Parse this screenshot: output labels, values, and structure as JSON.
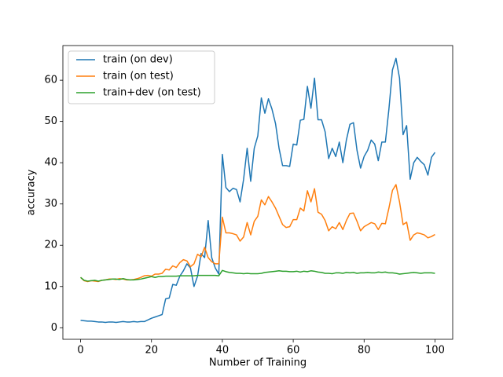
{
  "chart_data": {
    "type": "line",
    "xlabel": "Number of Training",
    "ylabel": "accuracy",
    "x": [
      0,
      1,
      2,
      3,
      4,
      5,
      6,
      7,
      8,
      9,
      10,
      11,
      12,
      13,
      14,
      15,
      16,
      17,
      18,
      19,
      20,
      21,
      22,
      23,
      24,
      25,
      26,
      27,
      28,
      29,
      30,
      31,
      32,
      33,
      34,
      35,
      36,
      37,
      38,
      39,
      40,
      41,
      42,
      43,
      44,
      45,
      46,
      47,
      48,
      49,
      50,
      51,
      52,
      53,
      54,
      55,
      56,
      57,
      58,
      59,
      60,
      61,
      62,
      63,
      64,
      65,
      66,
      67,
      68,
      69,
      70,
      71,
      72,
      73,
      74,
      75,
      76,
      77,
      78,
      79,
      80,
      81,
      82,
      83,
      84,
      85,
      86,
      87,
      88,
      89,
      90,
      91,
      92,
      93,
      94,
      95,
      96,
      97,
      98,
      99,
      100
    ],
    "series": [
      {
        "name": "train (on dev)",
        "color": "#1f77b4",
        "values": [
          1.8,
          1.7,
          1.6,
          1.6,
          1.5,
          1.4,
          1.4,
          1.3,
          1.4,
          1.4,
          1.3,
          1.4,
          1.5,
          1.4,
          1.4,
          1.5,
          1.4,
          1.5,
          1.5,
          1.9,
          2.3,
          2.6,
          2.9,
          3.2,
          7.0,
          7.2,
          10.5,
          10.3,
          12.5,
          13.8,
          15.5,
          14.5,
          10.0,
          12.5,
          18.0,
          17.0,
          26.0,
          17.0,
          14.5,
          13.0,
          42.0,
          34.0,
          33.0,
          33.8,
          33.5,
          30.5,
          36.0,
          43.5,
          35.5,
          43.5,
          46.5,
          55.7,
          52.0,
          55.5,
          53.0,
          49.5,
          43.5,
          39.3,
          39.3,
          39.1,
          44.5,
          44.3,
          50.3,
          50.5,
          58.5,
          53.2,
          60.5,
          50.4,
          50.4,
          47.5,
          41.0,
          43.5,
          41.5,
          45.0,
          40.0,
          45.5,
          49.3,
          49.7,
          43.0,
          38.7,
          41.5,
          43.0,
          45.5,
          44.5,
          40.5,
          45.0,
          45.0,
          53.0,
          62.5,
          65.3,
          60.5,
          46.8,
          49.0,
          36.0,
          40.0,
          41.3,
          40.3,
          39.5,
          37.0,
          41.3,
          42.5
        ]
      },
      {
        "name": "train (on test)",
        "color": "#ff7f0e",
        "values": [
          12.2,
          11.4,
          11.2,
          11.4,
          11.3,
          11.2,
          11.5,
          11.6,
          11.8,
          11.8,
          11.7,
          11.9,
          11.8,
          11.6,
          11.6,
          11.7,
          11.9,
          12.2,
          12.6,
          12.7,
          12.5,
          13.0,
          13.0,
          13.2,
          14.2,
          14.0,
          15.0,
          14.6,
          15.8,
          16.5,
          16.2,
          14.8,
          15.5,
          17.8,
          17.2,
          19.5,
          17.0,
          16.0,
          15.5,
          15.5,
          26.8,
          23.0,
          23.0,
          22.8,
          22.5,
          21.0,
          22.0,
          25.5,
          22.5,
          25.8,
          27.0,
          31.0,
          29.8,
          31.8,
          30.5,
          29.0,
          27.0,
          25.0,
          24.3,
          24.5,
          26.2,
          26.2,
          29.0,
          28.3,
          33.2,
          30.5,
          33.7,
          28.0,
          27.5,
          26.0,
          23.5,
          24.5,
          24.0,
          25.5,
          23.8,
          26.0,
          27.7,
          27.8,
          25.8,
          23.5,
          24.5,
          25.0,
          25.5,
          25.2,
          23.8,
          25.3,
          25.2,
          29.0,
          33.3,
          34.7,
          30.5,
          25.0,
          25.6,
          21.2,
          22.5,
          23.0,
          22.8,
          22.5,
          21.8,
          22.1,
          22.6
        ]
      },
      {
        "name": "train+dev (on test)",
        "color": "#2ca02c",
        "values": [
          12.2,
          11.5,
          11.3,
          11.4,
          11.5,
          11.3,
          11.5,
          11.6,
          11.7,
          11.8,
          11.8,
          11.7,
          11.9,
          11.7,
          11.6,
          11.6,
          11.7,
          11.8,
          12.0,
          12.2,
          12.4,
          12.2,
          12.4,
          12.4,
          12.5,
          12.5,
          12.5,
          12.5,
          12.6,
          12.6,
          12.6,
          12.6,
          12.6,
          12.7,
          12.7,
          12.7,
          12.7,
          12.7,
          12.7,
          12.6,
          13.9,
          13.6,
          13.4,
          13.3,
          13.2,
          13.2,
          13.1,
          13.2,
          13.1,
          13.1,
          13.1,
          13.2,
          13.4,
          13.5,
          13.6,
          13.7,
          13.8,
          13.7,
          13.7,
          13.6,
          13.6,
          13.7,
          13.5,
          13.7,
          13.6,
          13.8,
          13.7,
          13.5,
          13.4,
          13.2,
          13.2,
          13.1,
          13.3,
          13.3,
          13.2,
          13.4,
          13.3,
          13.4,
          13.2,
          13.3,
          13.3,
          13.4,
          13.3,
          13.3,
          13.5,
          13.4,
          13.5,
          13.3,
          13.3,
          13.2,
          13.0,
          13.1,
          13.2,
          13.3,
          13.4,
          13.3,
          13.2,
          13.3,
          13.3,
          13.3,
          13.2
        ]
      }
    ],
    "xlim": [
      -5,
      105
    ],
    "ylim": [
      -2.8,
      68.4
    ],
    "xticks": [
      0,
      20,
      40,
      60,
      80,
      100
    ],
    "yticks": [
      0,
      10,
      20,
      30,
      40,
      50,
      60
    ],
    "legend": "upper-left",
    "grid": false
  }
}
